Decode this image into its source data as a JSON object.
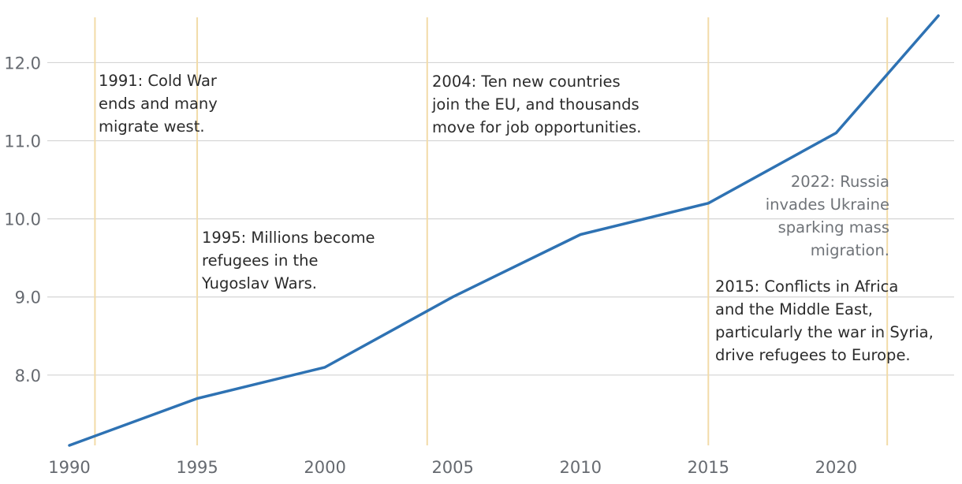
{
  "chart_data": {
    "type": "line",
    "title": "",
    "xlabel": "",
    "ylabel": "",
    "xlim": [
      1990,
      2024
    ],
    "ylim": [
      7.1,
      12.6
    ],
    "x_ticks": [
      1990,
      1995,
      2000,
      2005,
      2010,
      2015,
      2020
    ],
    "y_ticks": [
      8.0,
      9.0,
      10.0,
      11.0,
      12.0
    ],
    "grid": "horizontal",
    "series": [
      {
        "name": "series",
        "color": "#2e72b3",
        "x": [
          1990,
          1995,
          2000,
          2005,
          2010,
          2015,
          2020,
          2024
        ],
        "y": [
          7.1,
          7.7,
          8.1,
          9.0,
          9.8,
          10.2,
          11.1,
          12.6
        ]
      }
    ],
    "marker_lines": {
      "color": "#f2dba8",
      "years": [
        1991,
        1995,
        2004,
        2015,
        2022
      ]
    },
    "annotations": [
      {
        "year": 1991,
        "lines": [
          "1991: Cold War",
          "ends and many",
          "migrate west."
        ]
      },
      {
        "year": 1995,
        "lines": [
          "1995: Millions become",
          "refugees in the",
          "Yugoslav Wars."
        ]
      },
      {
        "year": 2004,
        "lines": [
          "2004: Ten new countries",
          "join the EU, and thousands",
          "move for job opportunities."
        ]
      },
      {
        "year": 2022,
        "lines": [
          "2022: Russia",
          "invades Ukraine",
          "sparking mass",
          "migration."
        ]
      },
      {
        "year": 2015,
        "lines": [
          "2015: Conflicts in Africa",
          "and the Middle East,",
          "particularly the war in Syria,",
          "drive refugees to Europe."
        ]
      }
    ]
  }
}
